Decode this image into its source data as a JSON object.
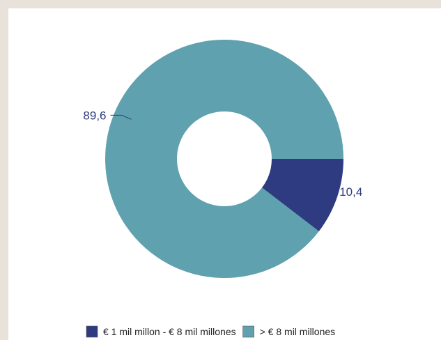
{
  "colors": {
    "background": "#e8e2db",
    "panel": "#ffffff",
    "label": "#2f3b7e",
    "leader": "#2f3b7e",
    "legend_text": "#1f1f1f"
  },
  "chart_data": {
    "type": "pie",
    "donut": true,
    "start_position": "3 o'clock, counter-clockwise",
    "slices": [
      {
        "label": "€ 1 mil millon - € 8 mil millones",
        "value": 10.4,
        "display": "10,4",
        "color": "#2e3b80"
      },
      {
        "label": "> € 8 mil millones",
        "value": 89.6,
        "display": "89,6",
        "color": "#5fa1af"
      }
    ],
    "legend_position": "bottom"
  }
}
